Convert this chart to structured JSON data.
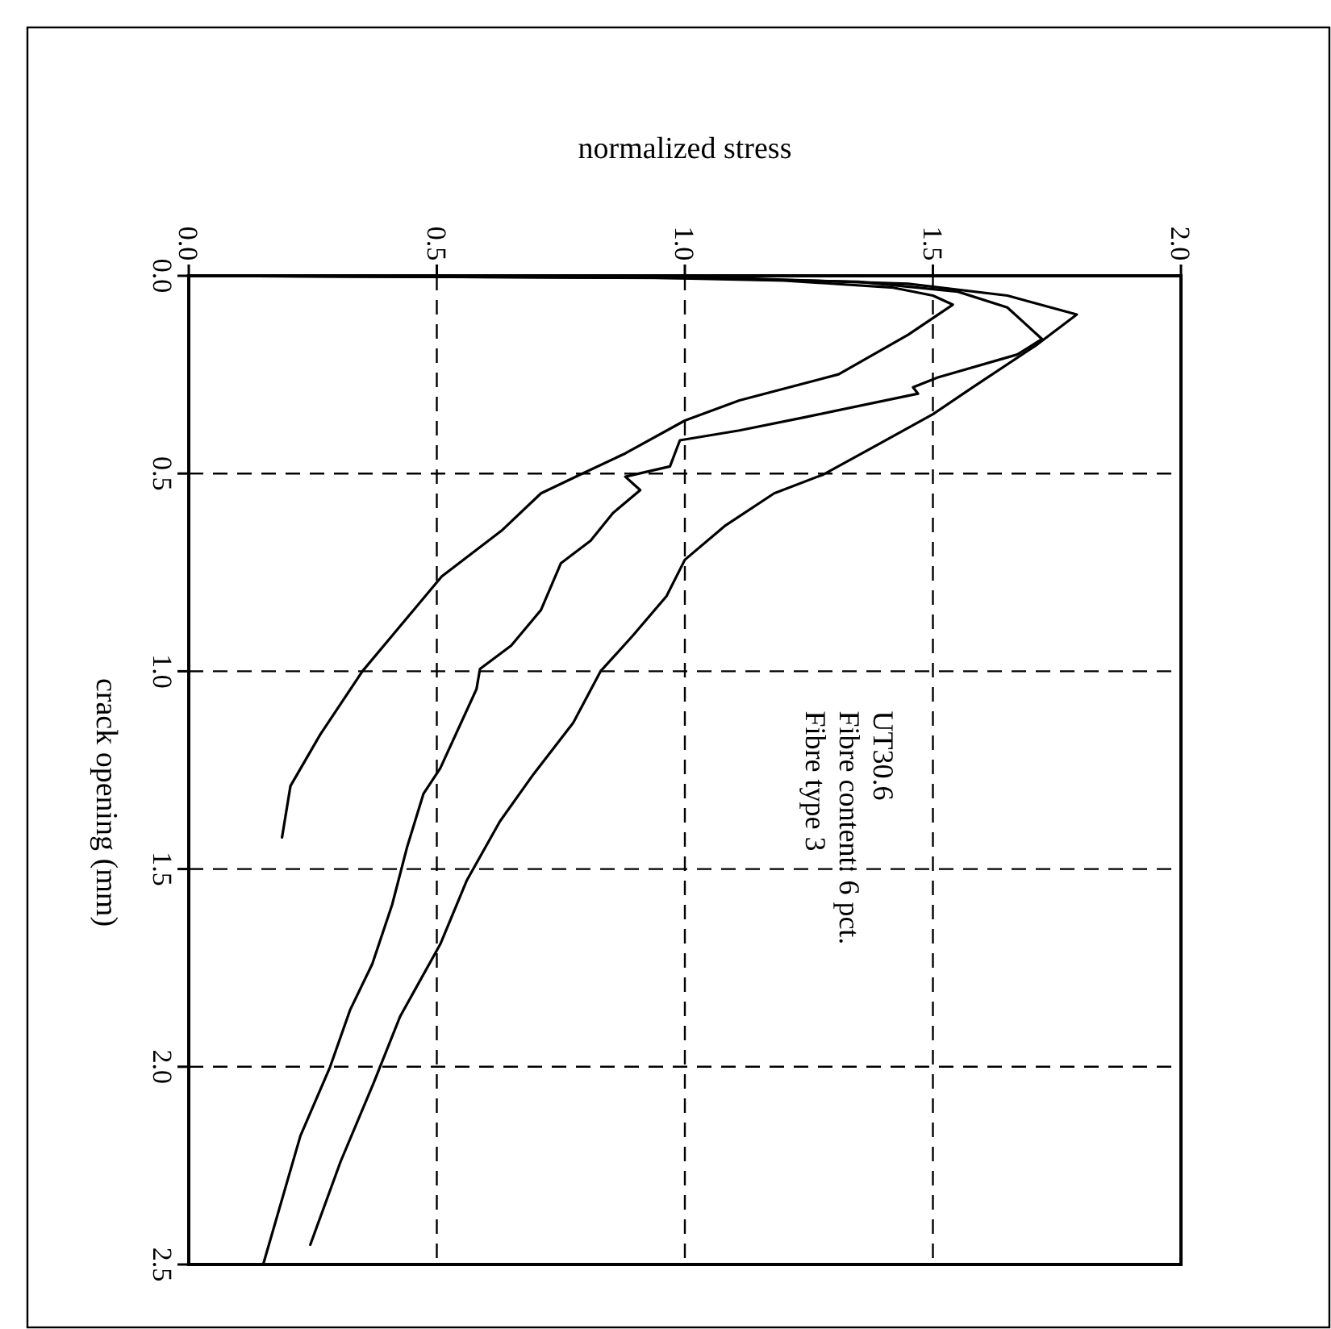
{
  "chart_data": {
    "type": "line",
    "xlabel": "normalized stress",
    "ylabel": "crack opening (mm)",
    "xlim": [
      0,
      2
    ],
    "ylim": [
      2.5,
      0
    ],
    "xticks": [
      {
        "value": 0,
        "label": "0.0"
      },
      {
        "value": 0.5,
        "label": "0.5"
      },
      {
        "value": 1,
        "label": "1.0"
      },
      {
        "value": 1.5,
        "label": "1.5"
      },
      {
        "value": 2,
        "label": "2.0"
      }
    ],
    "yticks": [
      {
        "value": 0,
        "label": "0.0"
      },
      {
        "value": 0.5,
        "label": "0.5"
      },
      {
        "value": 1,
        "label": "1.0"
      },
      {
        "value": 1.5,
        "label": "1.5"
      },
      {
        "value": 2,
        "label": "2.0"
      },
      {
        "value": 2.5,
        "label": "2.5"
      }
    ],
    "grid": true,
    "line_style": "solid",
    "marker": "none",
    "annotations": [
      "UT30.6\nFibre content: 6 pct.\nFibre type 3"
    ],
    "series": [
      {
        "color": "#000000",
        "values": [
          0,
          0.004,
          0.012,
          0.03,
          0.05,
          0.073,
          0.149,
          0.249,
          0.315,
          0.366,
          0.449,
          0.502,
          0.55,
          0.645,
          0.76,
          0.91,
          1.0,
          1.16,
          1.29,
          1.42
        ],
        "x": [
          0,
          0.9,
          1.2,
          1.42,
          1.5,
          1.54,
          1.45,
          1.31,
          1.11,
          1.0,
          0.88,
          0.79,
          0.71,
          0.63,
          0.51,
          0.41,
          0.35,
          0.265,
          0.205,
          0.188
        ]
      },
      {
        "color": "#000000",
        "values": [
          0,
          0.005,
          0.015,
          0.04,
          0.08,
          0.16,
          0.199,
          0.257,
          0.282,
          0.298,
          0.358,
          0.391,
          0.416,
          0.482,
          0.508,
          0.542,
          0.6,
          0.67,
          0.727,
          0.845,
          0.935,
          0.994,
          1.045,
          1.245,
          1.31,
          1.445,
          1.59,
          1.74,
          1.857,
          2.0,
          2.175,
          2.5
        ],
        "x": [
          0,
          1.0,
          1.35,
          1.55,
          1.65,
          1.72,
          1.67,
          1.51,
          1.46,
          1.47,
          1.24,
          1.11,
          0.99,
          0.97,
          0.88,
          0.91,
          0.855,
          0.81,
          0.75,
          0.71,
          0.65,
          0.587,
          0.58,
          0.507,
          0.473,
          0.44,
          0.41,
          0.37,
          0.325,
          0.285,
          0.225,
          0.15
        ]
      },
      {
        "color": "#000000",
        "values": [
          0,
          0.006,
          0.02,
          0.05,
          0.098,
          0.174,
          0.282,
          0.35,
          0.433,
          0.502,
          0.55,
          0.633,
          0.718,
          0.81,
          0.91,
          1.0,
          1.13,
          1.26,
          1.38,
          1.53,
          1.69,
          1.873,
          2.04,
          2.24,
          2.45
        ],
        "x": [
          0,
          1.1,
          1.45,
          1.65,
          1.79,
          1.71,
          1.58,
          1.5,
          1.38,
          1.28,
          1.18,
          1.08,
          1.0,
          0.963,
          0.895,
          0.83,
          0.775,
          0.695,
          0.627,
          0.56,
          0.507,
          0.426,
          0.373,
          0.306,
          0.245
        ]
      }
    ]
  }
}
